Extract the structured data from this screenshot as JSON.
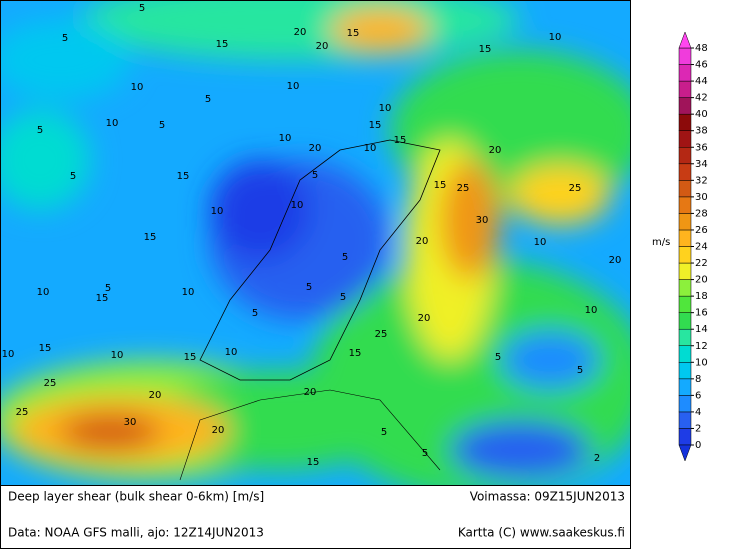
{
  "map": {
    "contour_labels": [
      "5",
      "5",
      "15",
      "20",
      "15",
      "20",
      "10",
      "15",
      "10",
      "5",
      "10",
      "10",
      "10",
      "5",
      "5",
      "15",
      "15",
      "10",
      "20",
      "10",
      "5",
      "15",
      "25",
      "30",
      "25",
      "5",
      "10",
      "10",
      "15",
      "20",
      "20",
      "10",
      "15",
      "5",
      "10",
      "5",
      "10",
      "5",
      "25",
      "20",
      "10",
      "15",
      "5",
      "5",
      "10",
      "15",
      "10",
      "20",
      "25",
      "30",
      "20",
      "20",
      "25",
      "15",
      "5",
      "5",
      "5",
      "15",
      "10",
      "15",
      "20",
      "5",
      "2"
    ]
  },
  "colorbar": {
    "unit": "m/s",
    "ticks": [
      0,
      2,
      4,
      6,
      8,
      10,
      12,
      14,
      16,
      18,
      20,
      22,
      24,
      26,
      28,
      30,
      32,
      34,
      36,
      38,
      40,
      42,
      44,
      46,
      48
    ],
    "colors": [
      "#1e3ce6",
      "#2860f0",
      "#1e8cff",
      "#14aaff",
      "#00c8f0",
      "#00dcd2",
      "#28e6a0",
      "#32dc50",
      "#50e63c",
      "#8cf03c",
      "#f0f028",
      "#ffd21e",
      "#ffb41e",
      "#f09614",
      "#e67814",
      "#d25a14",
      "#c83c14",
      "#b42814",
      "#a01414",
      "#8c0a0a",
      "#a0145a",
      "#c81e8c",
      "#dc28b4",
      "#f03cdc"
    ],
    "under_color": "#1432dc",
    "over_color": "#ff46f0"
  },
  "footer": {
    "title": "Deep layer shear (bulk shear 0-6km) [m/s]",
    "valid": "Voimassa: 09Z15JUN2013",
    "data": "Data: NOAA GFS malli, ajo: 12Z14JUN2013",
    "credit": "Kartta (C) www.saakeskus.fi"
  }
}
